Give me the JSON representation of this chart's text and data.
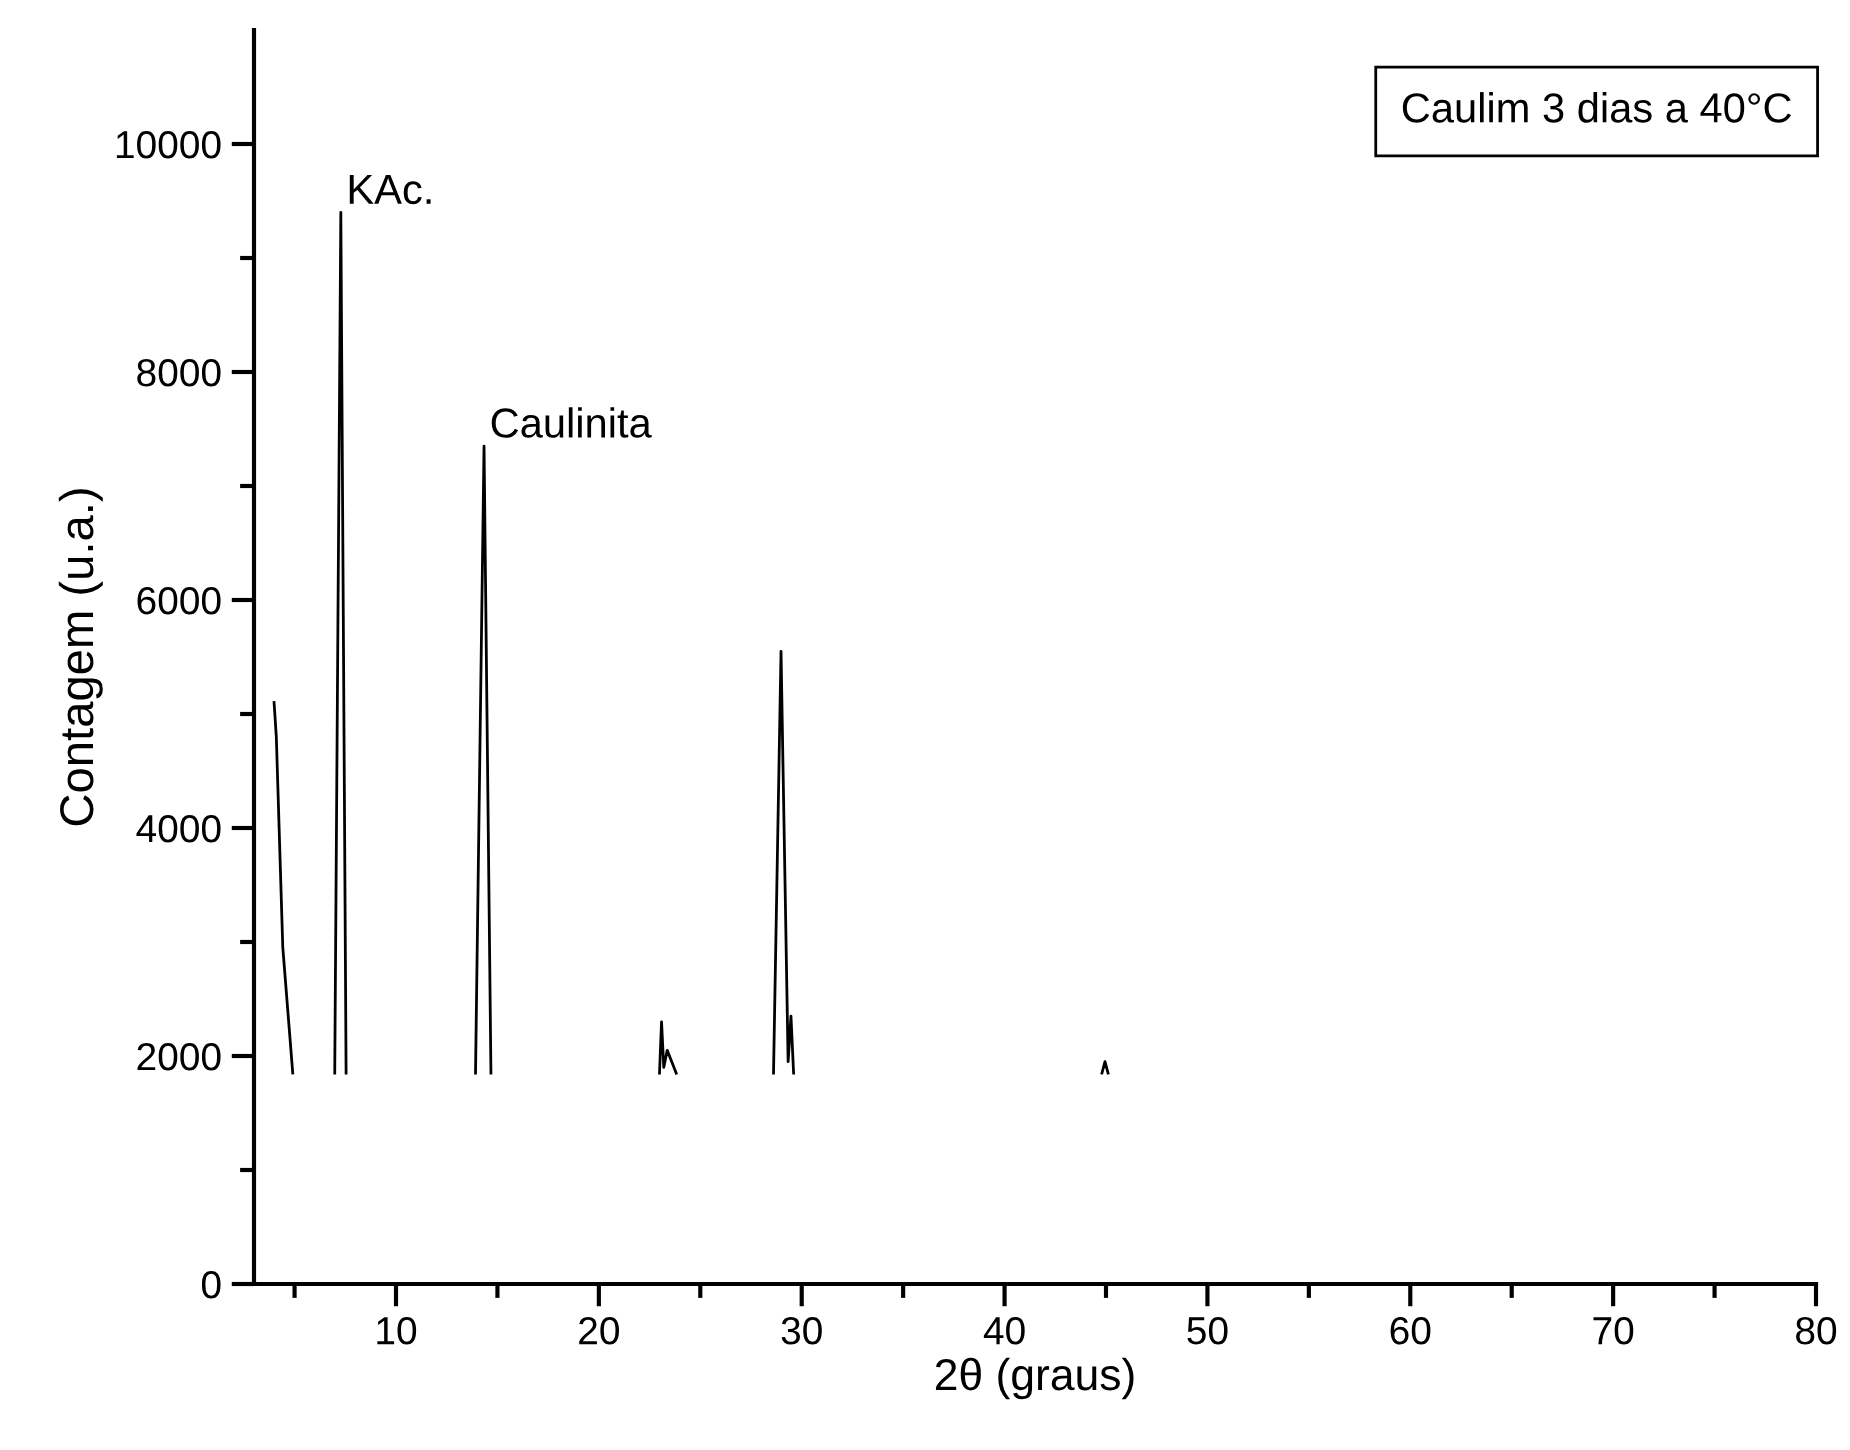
{
  "chart_data": {
    "type": "line",
    "xlabel": "2θ (graus)",
    "ylabel": "Contagem (u.a.)",
    "x": [
      3.99,
      4.1,
      4.42,
      4.91,
      null,
      6.98,
      7.28,
      7.54,
      null,
      13.92,
      14.34,
      14.68,
      null,
      22.99,
      23.09,
      23.2,
      23.37,
      23.81,
      null,
      28.61,
      28.98,
      29.33,
      29.47,
      29.6,
      null,
      44.8,
      44.95,
      45.1
    ],
    "series": [
      {
        "color": "#000000",
        "values": [
          5100,
          4800,
          2950,
          1850,
          null,
          1850,
          9400,
          1850,
          null,
          1850,
          7350,
          1850,
          null,
          1850,
          2300,
          1900,
          2050,
          1850,
          null,
          1850,
          5550,
          1950,
          2350,
          1850,
          null,
          1850,
          1950,
          1850
        ]
      }
    ],
    "xlim": [
      3,
      80
    ],
    "ylim": [
      0,
      11000
    ],
    "xticks": [
      {
        "value": 5,
        "label": null
      },
      10,
      {
        "value": 15,
        "label": null
      },
      20,
      {
        "value": 25,
        "label": null
      },
      30,
      {
        "value": 35,
        "label": null
      },
      40,
      {
        "value": 45,
        "label": null
      },
      50,
      {
        "value": 55,
        "label": null
      },
      60,
      {
        "value": 65,
        "label": null
      },
      70,
      {
        "value": 75,
        "label": null
      },
      80
    ],
    "yticks": [
      0,
      {
        "value": 1000,
        "label": null
      },
      2000,
      {
        "value": 3000,
        "label": null
      },
      4000,
      {
        "value": 5000,
        "label": null
      },
      6000,
      {
        "value": 7000,
        "label": null
      },
      8000,
      {
        "value": 9000,
        "label": null
      },
      10000
    ],
    "annotations": [
      {
        "text": "KAc.",
        "x": 7.28,
        "y": 9400
      },
      {
        "text": "Caulinita",
        "x": 14.34,
        "y": 7350
      },
      "Caulim 3 dias a 40°C"
    ],
    "grid": false,
    "legend": false,
    "marker": "none",
    "line_style": "solid"
  }
}
